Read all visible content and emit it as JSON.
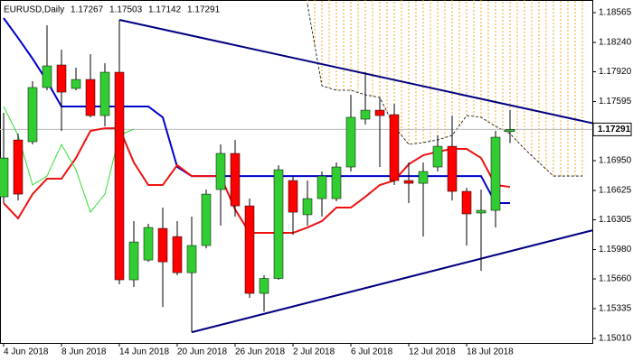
{
  "chart_data": {
    "type": "candlestick",
    "title": "EURUSD,Daily",
    "header_values": [
      1.17267,
      1.17503,
      1.17142,
      1.17291
    ],
    "last_price": 1.17291,
    "categories": [
      "4 Jun 2018",
      null,
      null,
      null,
      "8 Jun 2018",
      null,
      null,
      null,
      "14 Jun 2018",
      null,
      null,
      null,
      "20 Jun 2018",
      null,
      null,
      null,
      "26 Jun 2018",
      null,
      null,
      null,
      "2 Jul 2018",
      null,
      null,
      null,
      "6 Jul 2018",
      null,
      null,
      null,
      "12 Jul 2018",
      null,
      null,
      null,
      "18 Jul 2018",
      null,
      null,
      null,
      null,
      null,
      null,
      null,
      null
    ],
    "open": [
      1.16556,
      1.17176,
      1.17157,
      1.17748,
      1.17994,
      1.17738,
      1.17836,
      1.17442,
      1.17915,
      1.1565,
      1.15866,
      1.16211,
      1.16122,
      1.15728,
      1.16024,
      1.16635,
      1.17029,
      1.16457,
      1.15502,
      1.15665,
      1.16733,
      1.1636,
      1.16536,
      1.16536,
      1.16881,
      1.17403,
      1.17501,
      1.17452,
      1.16733,
      1.16703,
      1.16881,
      1.17107,
      1.16615,
      1.16379,
      1.16408,
      1.17267,
      null,
      null,
      null,
      null,
      null
    ],
    "high": [
      1.17472,
      1.17245,
      1.17817,
      1.18427,
      1.18161,
      1.17964,
      1.18112,
      1.18014,
      1.18486,
      1.1629,
      1.16261,
      1.16438,
      1.1629,
      1.1634,
      1.16635,
      1.17127,
      1.17176,
      1.16536,
      1.15699,
      1.169,
      1.16782,
      1.16733,
      1.16832,
      1.1693,
      1.17669,
      1.17915,
      1.17639,
      1.1757,
      1.1693,
      1.1693,
      1.17226,
      1.17442,
      1.16654,
      1.16635,
      1.17275,
      1.17503,
      null,
      null,
      null,
      null,
      null
    ],
    "low": [
      1.16487,
      1.16516,
      1.17127,
      1.17718,
      1.17275,
      1.17718,
      1.17423,
      1.17324,
      1.15601,
      1.15571,
      1.15846,
      1.15354,
      1.15699,
      1.15078,
      1.15994,
      1.16241,
      1.1634,
      1.15453,
      1.15305,
      1.1565,
      1.16142,
      1.16241,
      1.1634,
      1.16507,
      1.16832,
      1.17344,
      1.16881,
      1.16684,
      1.16487,
      1.16122,
      1.16832,
      1.16516,
      1.16024,
      1.15748,
      1.16221,
      1.17142,
      null,
      null,
      null,
      null,
      null
    ],
    "close": [
      1.16979,
      1.16585,
      1.17748,
      1.17984,
      1.17698,
      1.17836,
      1.17442,
      1.17915,
      1.1565,
      1.16063,
      1.16221,
      1.15846,
      1.15728,
      1.16024,
      1.16585,
      1.17029,
      1.16457,
      1.15502,
      1.15665,
      1.16851,
      1.16388,
      1.16536,
      1.16782,
      1.16881,
      1.17423,
      1.17501,
      1.17442,
      1.16733,
      1.16703,
      1.16832,
      1.17107,
      1.16615,
      1.16369,
      1.16408,
      1.17206,
      1.17291,
      null,
      null,
      null,
      null,
      null
    ],
    "up_color": "#32cd32",
    "down_color": "#ff0000",
    "lines": [
      {
        "color": "#0000cc",
        "values": [
          1.18506,
          1.18289,
          1.18063,
          1.17817,
          1.17541,
          1.17541,
          1.17541,
          1.17541,
          1.17541,
          1.17541,
          1.17541,
          1.17423,
          1.16881,
          1.16782,
          1.16782,
          1.16782,
          1.16782,
          1.16782,
          1.16782,
          1.16782,
          1.16782,
          1.16782,
          1.16782,
          1.16782,
          1.16782,
          1.16782,
          1.16782,
          1.16782,
          1.16782,
          1.16782,
          1.16782,
          1.16782,
          1.16782,
          1.16782,
          1.16487,
          1.16487,
          null,
          null,
          null,
          null,
          null
        ]
      },
      {
        "color": "#ee1111",
        "values": [
          1.16487,
          1.1632,
          1.16585,
          1.16753,
          1.16753,
          1.16979,
          1.17275,
          1.17304,
          1.17304,
          1.1693,
          1.16684,
          1.16684,
          1.169,
          1.16782,
          1.16782,
          1.16782,
          1.16418,
          1.16162,
          1.16162,
          1.16162,
          1.16162,
          1.16221,
          1.1629,
          1.16438,
          1.16438,
          1.16556,
          1.16684,
          1.16733,
          1.1691,
          1.17009,
          1.17048,
          1.17078,
          1.17078,
          1.16979,
          1.16684,
          1.16664,
          null,
          null,
          null,
          null,
          null
        ]
      },
      {
        "color": "#33dd33",
        "values": [
          1.17541,
          1.17226,
          1.16684,
          1.16782,
          1.17127,
          1.16851,
          1.16388,
          1.16585,
          1.17226,
          1.17295,
          null,
          null,
          null,
          null,
          null,
          null,
          null,
          null,
          null,
          null,
          null,
          null,
          null,
          null,
          null,
          null,
          null,
          null,
          null,
          null,
          null,
          null,
          null,
          null,
          null,
          null,
          null,
          null,
          null,
          null,
          null
        ]
      }
    ],
    "cloud": {
      "line_color": "#000000",
      "fill_color": "#f5a623",
      "values": [
        null,
        null,
        null,
        null,
        null,
        null,
        null,
        null,
        null,
        null,
        null,
        null,
        null,
        null,
        null,
        null,
        null,
        null,
        null,
        null,
        null,
        1.18654,
        1.17767,
        1.17718,
        1.17718,
        1.17669,
        1.17639,
        1.17324,
        1.17127,
        1.17147,
        1.17176,
        1.17226,
        1.17442,
        1.17423,
        1.17324,
        1.17245,
        1.17078,
        1.1693,
        1.16782,
        1.16782,
        1.16782
      ]
    },
    "trendlines": [
      {
        "color": "#000080",
        "x": [
          8,
          40
        ],
        "values": [
          1.18486,
          1.17383
        ]
      },
      {
        "color": "#000080",
        "x": [
          13,
          40
        ],
        "values": [
          1.15078,
          1.16162
        ]
      }
    ],
    "ylim": [
      1.14961,
      1.18703
    ],
    "yticks": [
      1.18565,
      {
        "value": 1.1824,
        "label": "1.18240"
      },
      {
        "value": 1.1792,
        "label": "1.17920"
      },
      1.17595,
      {
        "value": 1.1695,
        "label": "1.16950"
      },
      1.16625,
      1.16305,
      {
        "value": 1.1598,
        "label": "1.15980"
      },
      {
        "value": 1.1566,
        "label": "1.15660"
      },
      1.15335,
      {
        "value": 1.1501,
        "label": "1.15010"
      }
    ]
  }
}
